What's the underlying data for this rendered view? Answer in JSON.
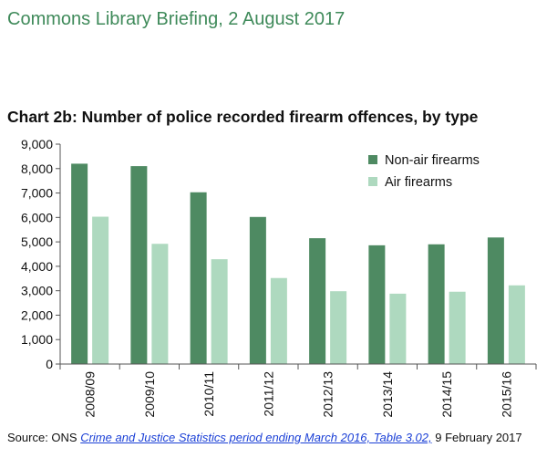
{
  "header": "Commons Library Briefing, 2 August 2017",
  "chart_data": {
    "type": "bar",
    "title": "Chart 2b: Number of police recorded firearm offences, by type",
    "categories": [
      "2008/09",
      "2009/10",
      "2010/11",
      "2011/12",
      "2012/13",
      "2013/14",
      "2014/15",
      "2015/16"
    ],
    "series": [
      {
        "name": "Non-air firearms",
        "color": "#4e8a62",
        "values": [
          8200,
          8100,
          7030,
          6020,
          5150,
          4860,
          4900,
          5180
        ]
      },
      {
        "name": "Air firearms",
        "color": "#aed9bf",
        "values": [
          6030,
          4920,
          4290,
          3520,
          2980,
          2880,
          2960,
          3220
        ]
      }
    ],
    "ylim": [
      0,
      9000
    ],
    "yticks": [
      "0",
      "1,000",
      "2,000",
      "3,000",
      "4,000",
      "5,000",
      "6,000",
      "7,000",
      "8,000",
      "9,000"
    ],
    "legend_position": "top-right",
    "grid": false
  },
  "source": {
    "prefix": "Source: ONS ",
    "link_text": "Crime and Justice Statistics period ending March 2016, Table 3.02,",
    "suffix": " 9 February 2017"
  }
}
